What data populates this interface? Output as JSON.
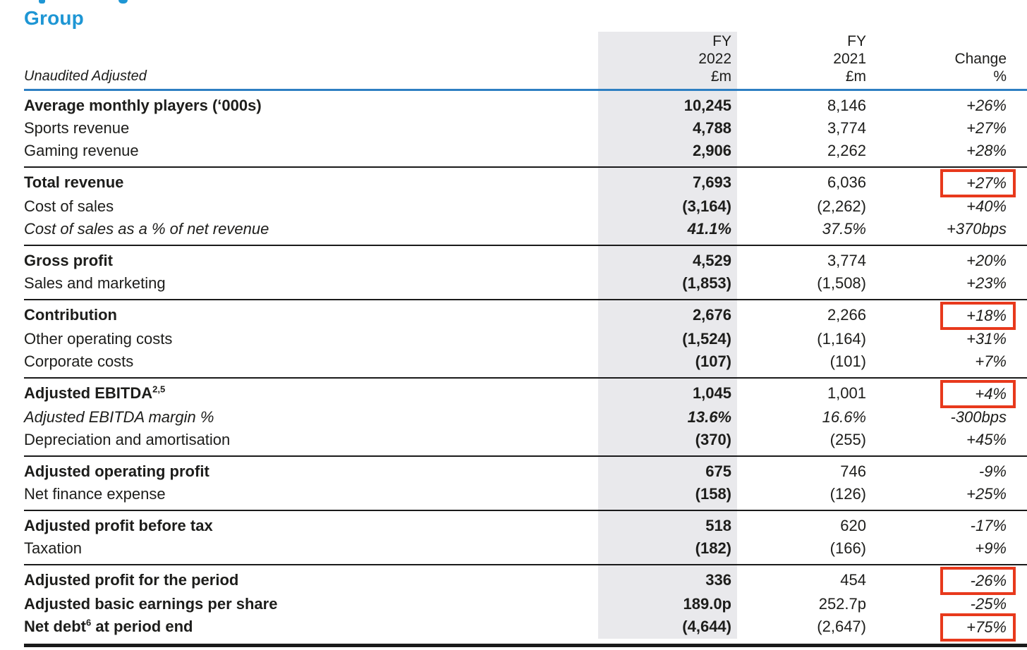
{
  "page": {
    "heading": "Group",
    "subheading_label": "Unaudited Adjusted"
  },
  "colors": {
    "accent_blue": "#1e96d4",
    "rule_blue": "#2e7fc2",
    "highlight_red": "#e8391c",
    "column_band_gray": "#e9e9ec",
    "text": "#1d1d1b"
  },
  "table": {
    "columns": {
      "fy2022": {
        "line1": "FY",
        "line2": "2022",
        "line3": "£m"
      },
      "fy2021": {
        "line1": "FY",
        "line2": "2021",
        "line3": "£m"
      },
      "change": {
        "line1": "Change",
        "line2": "%"
      }
    },
    "groups": [
      {
        "rows": [
          {
            "label": "Average monthly players (‘000s)",
            "label_style": "bold",
            "v2022": "10,245",
            "v2021": "8,146",
            "change": "+26%",
            "boxed": false
          },
          {
            "label": "Sports revenue",
            "label_style": "normal",
            "v2022": "4,788",
            "v2021": "3,774",
            "change": "+27%",
            "boxed": false
          },
          {
            "label": "Gaming revenue",
            "label_style": "normal",
            "v2022": "2,906",
            "v2021": "2,262",
            "change": "+28%",
            "boxed": false
          }
        ]
      },
      {
        "rows": [
          {
            "label": "Total revenue",
            "label_style": "bold",
            "v2022": "7,693",
            "v2021": "6,036",
            "change": "+27%",
            "boxed": true
          },
          {
            "label": "Cost of sales",
            "label_style": "normal",
            "v2022": "(3,164)",
            "v2021": "(2,262)",
            "change": "+40%",
            "boxed": false
          },
          {
            "label": "Cost of sales as a % of net revenue",
            "label_style": "italic",
            "v2022": "41.1%",
            "v2021": "37.5%",
            "change": "+370bps",
            "boxed": false,
            "values_italic": true
          }
        ]
      },
      {
        "rows": [
          {
            "label": "Gross profit",
            "label_style": "bold",
            "v2022": "4,529",
            "v2021": "3,774",
            "change": "+20%",
            "boxed": false
          },
          {
            "label": "Sales and marketing",
            "label_style": "normal",
            "v2022": "(1,853)",
            "v2021": "(1,508)",
            "change": "+23%",
            "boxed": false
          }
        ]
      },
      {
        "rows": [
          {
            "label": "Contribution",
            "label_style": "bold",
            "v2022": "2,676",
            "v2021": "2,266",
            "change": "+18%",
            "boxed": true
          },
          {
            "label": "Other operating costs",
            "label_style": "normal",
            "v2022": "(1,524)",
            "v2021": "(1,164)",
            "change": "+31%",
            "boxed": false
          },
          {
            "label": "Corporate costs",
            "label_style": "normal",
            "v2022": "(107)",
            "v2021": "(101)",
            "change": "+7%",
            "boxed": false
          }
        ]
      },
      {
        "rows": [
          {
            "label": "Adjusted EBITDA",
            "sup": "2,5",
            "label_after": "",
            "label_style": "bold",
            "v2022": "1,045",
            "v2021": "1,001",
            "change": "+4%",
            "boxed": true
          },
          {
            "label": "Adjusted EBITDA margin %",
            "label_style": "italic",
            "v2022": "13.6%",
            "v2021": "16.6%",
            "change": "-300bps",
            "boxed": false,
            "values_italic": true
          },
          {
            "label": "Depreciation and amortisation",
            "label_style": "normal",
            "v2022": "(370)",
            "v2021": "(255)",
            "change": "+45%",
            "boxed": false
          }
        ]
      },
      {
        "rows": [
          {
            "label": "Adjusted operating profit",
            "label_style": "bold",
            "v2022": "675",
            "v2021": "746",
            "change": "-9%",
            "boxed": false
          },
          {
            "label": "Net finance expense",
            "label_style": "normal",
            "v2022": "(158)",
            "v2021": "(126)",
            "change": "+25%",
            "boxed": false
          }
        ]
      },
      {
        "rows": [
          {
            "label": "Adjusted profit before tax",
            "label_style": "bold",
            "v2022": "518",
            "v2021": "620",
            "change": "-17%",
            "boxed": false
          },
          {
            "label": "Taxation",
            "label_style": "normal",
            "v2022": "(182)",
            "v2021": "(166)",
            "change": "+9%",
            "boxed": false
          }
        ]
      },
      {
        "rows": [
          {
            "label": "Adjusted profit for the period",
            "label_style": "bold",
            "v2022": "336",
            "v2021": "454",
            "change": "-26%",
            "boxed": true
          },
          {
            "label": "Adjusted basic earnings per share",
            "label_style": "bold",
            "v2022": "189.0p",
            "v2021": "252.7p",
            "change": "-25%",
            "boxed": false
          },
          {
            "label": "Net debt",
            "sup": "6",
            "label_after": " at period end",
            "label_style": "bold",
            "v2022": "(4,644)",
            "v2021": "(2,647)",
            "change": "+75%",
            "boxed": true
          }
        ]
      }
    ]
  }
}
